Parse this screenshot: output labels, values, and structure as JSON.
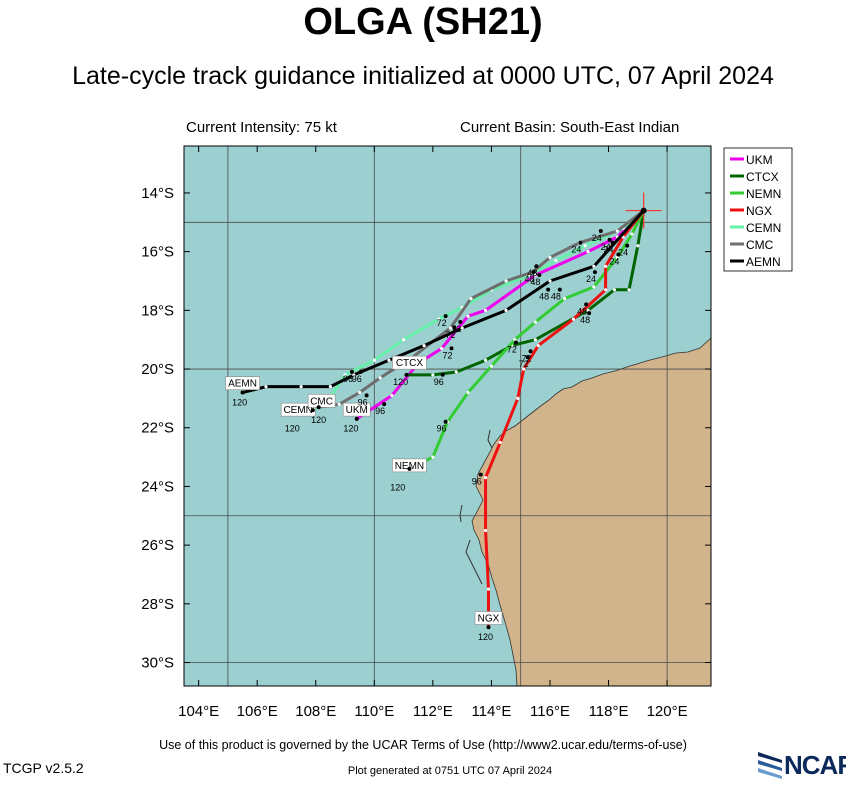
{
  "header": {
    "title": "OLGA (SH21)",
    "subtitle": "Late-cycle track guidance initialized at 0000 UTC, 07 April 2024",
    "current_intensity": "Current Intensity: 75 kt",
    "current_basin": "Current Basin: South-East Indian"
  },
  "footer": {
    "terms": "Use of this product is governed by the UCAR Terms of Use (http://www2.ucar.edu/terms-of-use)",
    "version": "TCGP v2.5.2",
    "generated": "Plot generated at 0751 UTC   07 April 2024",
    "logo_text": "NCAR"
  },
  "colors": {
    "ocean": "#9ccfcf",
    "land": "#d2b48c",
    "grid": "#4a4a4a",
    "storm_marker": "#ff3030"
  },
  "map_data": {
    "lon_range": [
      103.5,
      121.5
    ],
    "lat_range": [
      -30.8,
      -12.4
    ],
    "lon_ticks": [
      104,
      106,
      108,
      110,
      112,
      114,
      116,
      118,
      120
    ],
    "lon_tick_labels": [
      "104°E",
      "106°E",
      "108°E",
      "110°E",
      "112°E",
      "114°E",
      "116°E",
      "118°E",
      "120°E"
    ],
    "lat_ticks": [
      -14,
      -16,
      -18,
      -20,
      -22,
      -24,
      -26,
      -28,
      -30
    ],
    "lat_tick_labels": [
      "14°S",
      "16°S",
      "18°S",
      "20°S",
      "22°S",
      "24°S",
      "26°S",
      "28°S",
      "30°S"
    ],
    "grid_lons": [
      105,
      110,
      115,
      120
    ],
    "grid_lats": [
      -15,
      -20,
      -25,
      -30
    ],
    "storm_position": [
      119.2,
      -14.6
    ],
    "legend_position": "top-right",
    "tracks": [
      {
        "name": "UKM",
        "color": "#ee00ee",
        "points": [
          [
            119.2,
            -14.6
          ],
          [
            118.3,
            -15.5
          ],
          [
            117.3,
            -16.0
          ],
          [
            115.5,
            -16.8
          ],
          [
            113.8,
            -18.0
          ],
          [
            113.2,
            -18.2
          ],
          [
            112.3,
            -19.3
          ],
          [
            111.5,
            -19.8
          ],
          [
            110.6,
            -20.9
          ],
          [
            109.4,
            -21.7
          ]
        ],
        "labels": [
          {
            "text": "24",
            "lon": 117.9,
            "lat": -15.8
          },
          {
            "text": "48",
            "lon": 115.5,
            "lat": -17.0
          },
          {
            "text": "72",
            "lon": 112.5,
            "lat": -19.5
          },
          {
            "text": "96",
            "lon": 110.2,
            "lat": -21.4
          }
        ],
        "end_label": {
          "text": "UKM",
          "lon": 109.4,
          "lat": -21.4
        },
        "end_hour": {
          "text": "120",
          "lon": 109.2,
          "lat": -22.0
        }
      },
      {
        "name": "CTCX",
        "color": "#006400",
        "points": [
          [
            119.2,
            -14.6
          ],
          [
            119.0,
            -15.8
          ],
          [
            118.7,
            -17.3
          ],
          [
            118.2,
            -17.3
          ],
          [
            117.3,
            -18.0
          ],
          [
            115.5,
            -19.0
          ],
          [
            114.7,
            -19.2
          ],
          [
            113.8,
            -19.7
          ],
          [
            112.8,
            -20.1
          ],
          [
            112.0,
            -20.2
          ],
          [
            111.1,
            -20.2
          ]
        ],
        "labels": [
          {
            "text": "24",
            "lon": 118.5,
            "lat": -16.0
          },
          {
            "text": "48",
            "lon": 117.1,
            "lat": -18.0
          },
          {
            "text": "72",
            "lon": 115.2,
            "lat": -19.6
          },
          {
            "text": "96",
            "lon": 112.2,
            "lat": -20.4
          }
        ],
        "end_label": {
          "text": "CTCX",
          "lon": 111.2,
          "lat": -19.8
        },
        "end_hour": {
          "text": "120",
          "lon": 110.9,
          "lat": -20.4
        }
      },
      {
        "name": "NEMN",
        "color": "#33cc33",
        "points": [
          [
            119.2,
            -14.6
          ],
          [
            118.8,
            -15.4
          ],
          [
            118.3,
            -16.2
          ],
          [
            117.5,
            -17.2
          ],
          [
            116.5,
            -17.6
          ],
          [
            115.5,
            -18.4
          ],
          [
            114.8,
            -19.0
          ],
          [
            114.0,
            -19.9
          ],
          [
            113.2,
            -20.8
          ],
          [
            112.5,
            -21.8
          ],
          [
            112.0,
            -23.0
          ],
          [
            111.2,
            -23.4
          ]
        ],
        "labels": [
          {
            "text": "24",
            "lon": 118.0,
            "lat": -15.9
          },
          {
            "text": "48",
            "lon": 116.2,
            "lat": -17.5
          },
          {
            "text": "72",
            "lon": 114.7,
            "lat": -19.3
          },
          {
            "text": "96",
            "lon": 112.3,
            "lat": -22.0
          }
        ],
        "end_label": {
          "text": "NEMN",
          "lon": 111.2,
          "lat": -23.3
        },
        "end_hour": {
          "text": "120",
          "lon": 110.8,
          "lat": -24.0
        }
      },
      {
        "name": "NGX",
        "color": "#ee1111",
        "points": [
          [
            119.2,
            -14.6
          ],
          [
            118.5,
            -15.5
          ],
          [
            117.9,
            -16.5
          ],
          [
            117.9,
            -17.3
          ],
          [
            116.8,
            -18.3
          ],
          [
            115.6,
            -19.2
          ],
          [
            115.1,
            -20.0
          ],
          [
            114.9,
            -21.0
          ],
          [
            114.3,
            -22.5
          ],
          [
            113.8,
            -23.7
          ],
          [
            113.8,
            -25.5
          ],
          [
            113.9,
            -27.5
          ],
          [
            113.9,
            -28.8
          ]
        ],
        "labels": [
          {
            "text": "24",
            "lon": 118.2,
            "lat": -16.3
          },
          {
            "text": "48",
            "lon": 117.2,
            "lat": -18.3
          },
          {
            "text": "72",
            "lon": 115.1,
            "lat": -19.8
          },
          {
            "text": "96",
            "lon": 113.5,
            "lat": -23.8
          }
        ],
        "end_label": {
          "text": "NGX",
          "lon": 113.9,
          "lat": -28.5
        },
        "end_hour": {
          "text": "120",
          "lon": 113.8,
          "lat": -29.1
        }
      },
      {
        "name": "CEMN",
        "color": "#66f0aa",
        "points": [
          [
            119.2,
            -14.6
          ],
          [
            118.5,
            -15.2
          ],
          [
            117.2,
            -15.8
          ],
          [
            116.2,
            -16.3
          ],
          [
            115.3,
            -16.8
          ],
          [
            114.0,
            -17.3
          ],
          [
            113.0,
            -17.9
          ],
          [
            112.2,
            -18.3
          ],
          [
            111.0,
            -19.0
          ],
          [
            110.0,
            -19.7
          ],
          [
            109.0,
            -20.2
          ],
          [
            108.4,
            -21.1
          ],
          [
            107.9,
            -21.4
          ]
        ],
        "labels": [
          {
            "text": "24",
            "lon": 117.6,
            "lat": -15.5
          },
          {
            "text": "48",
            "lon": 115.3,
            "lat": -16.9
          },
          {
            "text": "72",
            "lon": 112.3,
            "lat": -18.4
          },
          {
            "text": "96",
            "lon": 109.1,
            "lat": -20.3
          }
        ],
        "end_label": {
          "text": "CEMN",
          "lon": 107.4,
          "lat": -21.4
        },
        "end_hour": {
          "text": "120",
          "lon": 107.2,
          "lat": -22.0
        }
      },
      {
        "name": "CMC",
        "color": "#6e6e6e",
        "points": [
          [
            119.2,
            -14.6
          ],
          [
            118.3,
            -15.3
          ],
          [
            117.0,
            -15.7
          ],
          [
            116.0,
            -16.2
          ],
          [
            115.4,
            -16.7
          ],
          [
            114.5,
            -17.0
          ],
          [
            113.3,
            -17.6
          ],
          [
            112.6,
            -18.6
          ],
          [
            111.3,
            -19.6
          ],
          [
            110.2,
            -20.3
          ],
          [
            109.5,
            -20.8
          ],
          [
            108.8,
            -21.2
          ],
          [
            108.1,
            -21.3
          ]
        ],
        "labels": [
          {
            "text": "24",
            "lon": 116.9,
            "lat": -15.9
          },
          {
            "text": "48",
            "lon": 115.4,
            "lat": -16.7
          },
          {
            "text": "72",
            "lon": 112.6,
            "lat": -18.8
          },
          {
            "text": "96",
            "lon": 109.6,
            "lat": -21.1
          }
        ],
        "end_label": {
          "text": "CMC",
          "lon": 108.2,
          "lat": -21.1
        },
        "end_hour": {
          "text": "120",
          "lon": 108.1,
          "lat": -21.7
        }
      },
      {
        "name": "AEMN",
        "color": "#000000",
        "points": [
          [
            119.2,
            -14.6
          ],
          [
            117.5,
            -16.5
          ],
          [
            116.0,
            -17.0
          ],
          [
            114.5,
            -18.0
          ],
          [
            113.0,
            -18.6
          ],
          [
            111.7,
            -19.2
          ],
          [
            110.5,
            -19.7
          ],
          [
            109.3,
            -20.2
          ],
          [
            108.5,
            -20.6
          ],
          [
            107.5,
            -20.6
          ],
          [
            106.3,
            -20.6
          ],
          [
            105.5,
            -20.8
          ]
        ],
        "labels": [
          {
            "text": "24",
            "lon": 117.4,
            "lat": -16.9
          },
          {
            "text": "48",
            "lon": 115.8,
            "lat": -17.5
          },
          {
            "text": "72",
            "lon": 112.8,
            "lat": -18.6
          },
          {
            "text": "96",
            "lon": 109.4,
            "lat": -20.3
          }
        ],
        "end_label": {
          "text": "AEMN",
          "lon": 105.5,
          "lat": -20.5
        },
        "end_hour": {
          "text": "120",
          "lon": 105.4,
          "lat": -21.1
        }
      }
    ]
  }
}
